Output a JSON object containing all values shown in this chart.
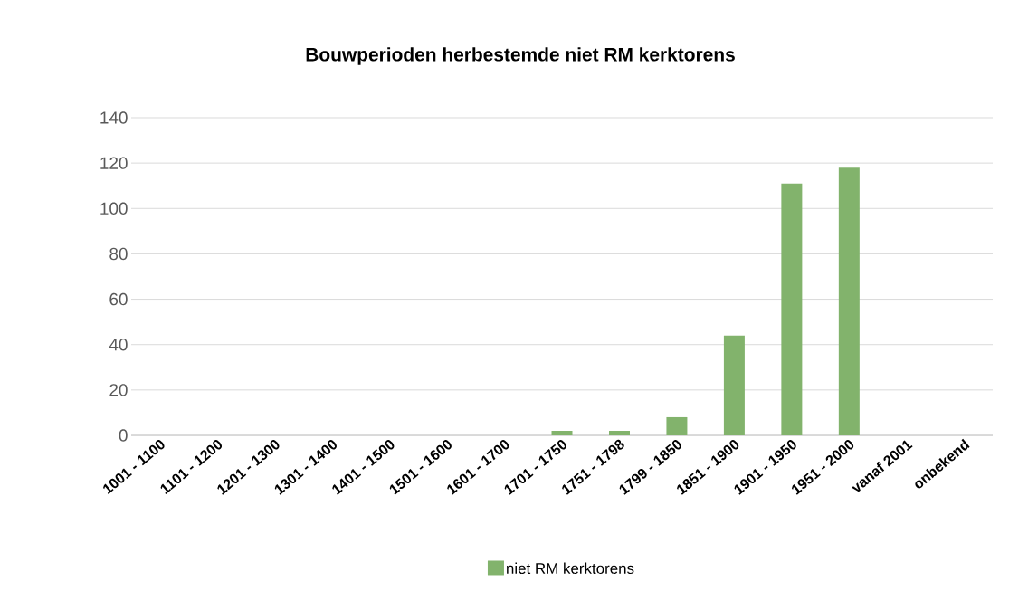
{
  "chart_data": {
    "type": "bar",
    "title": "Bouwperioden herbestemde niet RM kerktorens",
    "categories": [
      "1001 - 1100",
      "1101 - 1200",
      "1201 - 1300",
      "1301 - 1400",
      "1401 - 1500",
      "1501 - 1600",
      "1601 - 1700",
      "1701 - 1750",
      "1751 - 1798",
      "1799 - 1850",
      "1851 - 1900",
      "1901 - 1950",
      "1951 - 2000",
      "vanaf 2001",
      "onbekend"
    ],
    "series": [
      {
        "name": "niet RM kerktorens",
        "color": "#82b36c",
        "values": [
          0,
          0,
          0,
          0,
          0,
          0,
          0,
          2,
          2,
          8,
          44,
          111,
          118,
          0,
          0
        ]
      }
    ],
    "ylim": [
      0,
      140
    ],
    "yticks": [
      0,
      20,
      40,
      60,
      80,
      100,
      120,
      140
    ],
    "grid": "y",
    "legend": "bottom"
  }
}
